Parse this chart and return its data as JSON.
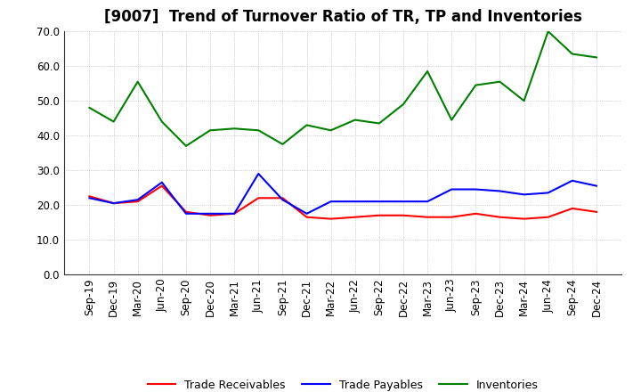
{
  "title": "[9007]  Trend of Turnover Ratio of TR, TP and Inventories",
  "xlabels": [
    "Sep-19",
    "Dec-19",
    "Mar-20",
    "Jun-20",
    "Sep-20",
    "Dec-20",
    "Mar-21",
    "Jun-21",
    "Sep-21",
    "Dec-21",
    "Mar-22",
    "Jun-22",
    "Sep-22",
    "Dec-22",
    "Mar-23",
    "Jun-23",
    "Sep-23",
    "Dec-23",
    "Mar-24",
    "Jun-24",
    "Sep-24",
    "Dec-24"
  ],
  "trade_receivables": [
    22.5,
    20.5,
    21.0,
    25.5,
    18.0,
    17.0,
    17.5,
    22.0,
    22.0,
    16.5,
    16.0,
    16.5,
    17.0,
    17.0,
    16.5,
    16.5,
    17.5,
    16.5,
    16.0,
    16.5,
    19.0,
    18.0
  ],
  "trade_payables": [
    22.0,
    20.5,
    21.5,
    26.5,
    17.5,
    17.5,
    17.5,
    29.0,
    21.5,
    17.5,
    21.0,
    21.0,
    21.0,
    21.0,
    21.0,
    24.5,
    24.5,
    24.0,
    23.0,
    23.5,
    27.0,
    25.5
  ],
  "inventories": [
    48.0,
    44.0,
    55.5,
    44.0,
    37.0,
    41.5,
    42.0,
    41.5,
    37.5,
    43.0,
    41.5,
    44.5,
    43.5,
    49.0,
    58.5,
    44.5,
    54.5,
    55.5,
    50.0,
    70.0,
    63.5,
    62.5
  ],
  "tr_color": "#ff0000",
  "tp_color": "#0000ff",
  "inv_color": "#008000",
  "ylim": [
    0.0,
    70.0
  ],
  "yticks": [
    0.0,
    10.0,
    20.0,
    30.0,
    40.0,
    50.0,
    60.0,
    70.0
  ],
  "legend_labels": [
    "Trade Receivables",
    "Trade Payables",
    "Inventories"
  ],
  "bg_color": "#ffffff",
  "plot_bg_color": "#ffffff",
  "grid_color": "#aaaaaa",
  "title_fontsize": 12,
  "tick_fontsize": 8.5,
  "legend_fontsize": 9
}
